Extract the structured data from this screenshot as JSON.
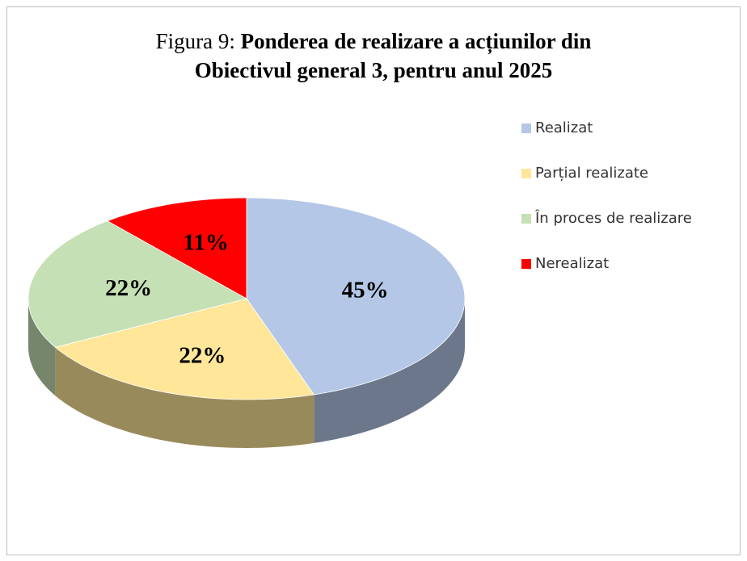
{
  "chart_data": {
    "type": "pie3d",
    "figure_label": "Figura 9:",
    "title": "Ponderea de realizare a acțiunilor din",
    "title_line2": "Obiectivul general 3, pentru anul 2025",
    "categories": [
      "Realizat",
      "Parțial realizate",
      "În proces de realizare",
      "Nerealizat"
    ],
    "values": [
      45,
      22,
      22,
      11
    ],
    "value_labels": [
      "45%",
      "22%",
      "22%",
      "11%"
    ],
    "colors": [
      "#b4c7e7",
      "#ffe699",
      "#c5e0b4",
      "#ff0000"
    ],
    "legend": "right"
  }
}
